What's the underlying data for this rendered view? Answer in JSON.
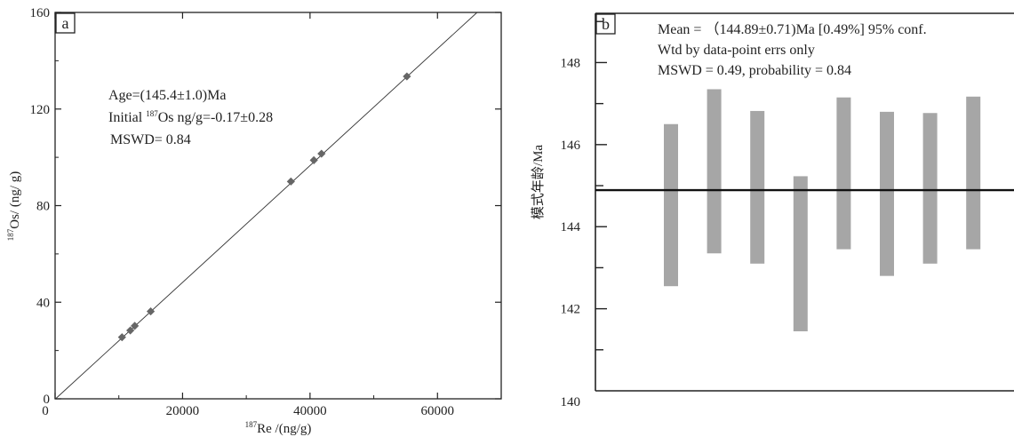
{
  "chart_data": [
    {
      "panel": "a",
      "type": "scatter",
      "xlabel_sup": "187",
      "xlabel": "Re /(ng/g)",
      "ylabel_sup": "187",
      "ylabel": "Os/ (ng/ g)",
      "xlim": [
        0,
        70000
      ],
      "ylim": [
        0,
        160
      ],
      "xticks": [
        0,
        20000,
        40000,
        60000
      ],
      "yticks": [
        0,
        40,
        80,
        120,
        160
      ],
      "annotations": {
        "age": "Age=(145.4±1.0)Ma",
        "initial_prefix": "Initial ",
        "initial_sup": "187",
        "initial_rest": "Os ng/g=-0.17±0.28",
        "mswd": "MSWD= 0.84"
      },
      "points": [
        {
          "x": 10500,
          "y": 25.5
        },
        {
          "x": 11800,
          "y": 28.3
        },
        {
          "x": 12500,
          "y": 30.2
        },
        {
          "x": 15000,
          "y": 36.2
        },
        {
          "x": 37000,
          "y": 90
        },
        {
          "x": 40600,
          "y": 98.8
        },
        {
          "x": 41800,
          "y": 101.5
        },
        {
          "x": 55200,
          "y": 133.5
        }
      ],
      "fit_line": {
        "slope": 0.002419,
        "intercept": -0.17
      },
      "marker_color": "#666666"
    },
    {
      "panel": "b",
      "type": "bar",
      "ylabel": "模式年龄/Ma",
      "ylim": [
        140,
        149.2
      ],
      "yticks": [
        140,
        142,
        144,
        146,
        148
      ],
      "annotations": {
        "line1": "Mean = （144.89±0.71)Ma [0.49%] 95% conf.",
        "line2": "Wtd by data-point errs only",
        "line3": "MSWD = 0.49, probability = 0.84"
      },
      "mean": 144.89,
      "bars": [
        {
          "low": 142.55,
          "high": 146.5
        },
        {
          "low": 143.35,
          "high": 147.35
        },
        {
          "low": 143.1,
          "high": 146.82
        },
        {
          "low": 141.45,
          "high": 145.23
        },
        {
          "low": 143.45,
          "high": 147.15
        },
        {
          "low": 142.8,
          "high": 146.8
        },
        {
          "low": 143.1,
          "high": 146.77
        },
        {
          "low": 143.45,
          "high": 147.17
        }
      ],
      "bar_color": "#a6a6a6"
    }
  ]
}
